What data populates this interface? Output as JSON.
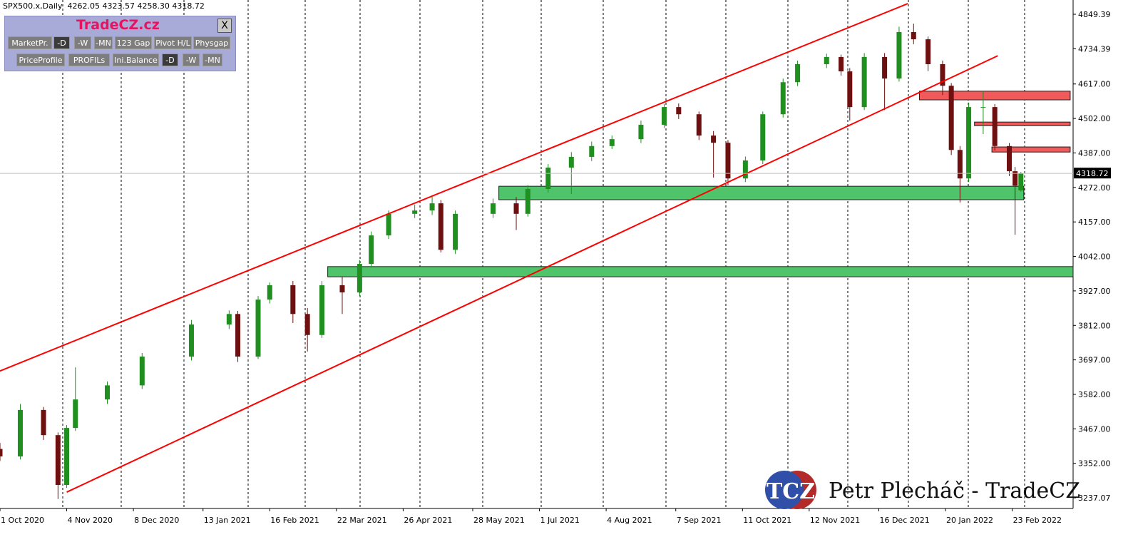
{
  "header": "SPX500.x,Daily  4262.05 4323.57 4258.30 4318.72",
  "toolbar": {
    "title": "TradeCZ.cz",
    "close": "X",
    "row1": [
      "MarketPr.",
      "-D",
      "-W",
      "-MN",
      "123 Gap",
      "Pivot H/L",
      "Physgap"
    ],
    "row2": [
      "PriceProfile",
      "PROFILs",
      "Ini.Balance",
      "-D",
      "-W",
      "-MN"
    ]
  },
  "watermark": {
    "logo": "TCZ",
    "text": "Petr Plecháč - TradeCZ"
  },
  "chart_data": {
    "type": "candlestick",
    "up_color": "#1f8f1f",
    "down_color": "#6e1010",
    "xlim": [
      0,
      370
    ],
    "ylim": [
      3201.5,
      4897
    ],
    "xticks": [
      {
        "value": 0,
        "label": "1 Oct 2020"
      },
      {
        "value": 23,
        "label": "4 Nov 2020"
      },
      {
        "value": 46,
        "label": "8 Dec 2020"
      },
      {
        "value": 70,
        "label": "13 Jan 2021"
      },
      {
        "value": 93,
        "label": "16 Feb 2021"
      },
      {
        "value": 116,
        "label": "22 Mar 2021"
      },
      {
        "value": 139,
        "label": "26 Apr 2021"
      },
      {
        "value": 163,
        "label": "28 May 2021"
      },
      {
        "value": 186,
        "label": "1 Jul 2021"
      },
      {
        "value": 209,
        "label": "4 Aug 2021"
      },
      {
        "value": 233,
        "label": "7 Sep 2021"
      },
      {
        "value": 256,
        "label": "11 Oct 2021"
      },
      {
        "value": 279,
        "label": "12 Nov 2021"
      },
      {
        "value": 303,
        "label": "16 Dec 2021"
      },
      {
        "value": 326,
        "label": "20 Jan 2022"
      },
      {
        "value": 349,
        "label": "23 Feb 2022"
      }
    ],
    "yticks": [
      4849.39,
      4734.39,
      {
        "value": 4617,
        "label": "4617.00"
      },
      {
        "value": 4502,
        "label": "4502.00"
      },
      {
        "value": 4387,
        "label": "4387.00"
      },
      {
        "value": 4272,
        "label": "4272.00"
      },
      {
        "value": 4157,
        "label": "4157.00"
      },
      {
        "value": 4042,
        "label": "4042.00"
      },
      {
        "value": 3927,
        "label": "3927.00"
      },
      {
        "value": 3812,
        "label": "3812.00"
      },
      {
        "value": 3697,
        "label": "3697.00"
      },
      {
        "value": 3582,
        "label": "3582.00"
      },
      {
        "value": 3467,
        "label": "3467.00"
      },
      {
        "value": 3352,
        "label": "3352.00"
      },
      3237.07
    ],
    "candles": {
      "x": [
        0,
        7,
        15,
        20,
        23,
        26,
        37,
        49,
        66,
        79,
        82,
        89,
        93,
        101,
        106,
        111,
        118,
        124,
        128,
        134,
        143,
        149,
        152,
        157,
        170,
        178,
        182,
        189,
        197,
        204,
        211,
        221,
        229,
        234,
        241,
        246,
        251,
        257,
        263,
        270,
        275,
        285,
        290,
        293,
        298,
        305,
        310,
        315,
        320,
        325,
        328,
        331,
        334,
        339,
        343,
        348,
        350,
        352
      ],
      "open": [
        3400,
        3375,
        3530,
        3446,
        3280,
        3470,
        3565,
        3612,
        3708,
        3815,
        3850,
        3708,
        3898,
        3946,
        3850,
        3780,
        3946,
        3922,
        4017,
        4112,
        4184,
        4195,
        4219,
        4064,
        4184,
        4219,
        4184,
        4267,
        4338,
        4374,
        4410,
        4433,
        4481,
        4540,
        4516,
        4445,
        4421,
        4302,
        4362,
        4516,
        4623,
        4683,
        4707,
        4659,
        4540,
        4707,
        4635,
        4790,
        4766,
        4683,
        4611,
        4397,
        4302,
        4540,
        4540,
        4410,
        4326,
        4262.05
      ],
      "high": [
        3420,
        3550,
        3540,
        3455,
        3480,
        3672,
        3625,
        3720,
        3830,
        3862,
        3860,
        3910,
        3955,
        3960,
        3870,
        3960,
        3975,
        4030,
        4125,
        4195,
        4215,
        4245,
        4230,
        4195,
        4235,
        4240,
        4280,
        4350,
        4390,
        4425,
        4445,
        4495,
        4550,
        4552,
        4525,
        4460,
        4430,
        4375,
        4525,
        4635,
        4695,
        4718,
        4715,
        4670,
        4720,
        4720,
        4808,
        4818,
        4775,
        4695,
        4620,
        4410,
        4555,
        4595,
        4550,
        4420,
        4340,
        4323.57
      ],
      "low": [
        3360,
        3365,
        3430,
        3233,
        3270,
        3460,
        3550,
        3600,
        3695,
        3800,
        3690,
        3700,
        3885,
        3820,
        3725,
        3770,
        3850,
        3910,
        4005,
        4100,
        4170,
        4180,
        4055,
        4050,
        4170,
        4130,
        4175,
        4255,
        4250,
        4360,
        4400,
        4420,
        4470,
        4500,
        4430,
        4305,
        4280,
        4290,
        4350,
        4505,
        4610,
        4670,
        4645,
        4495,
        4530,
        4530,
        4625,
        4750,
        4660,
        4580,
        4380,
        4222,
        4290,
        4450,
        4395,
        4310,
        4114,
        4258.3
      ],
      "close": [
        3375,
        3530,
        3446,
        3280,
        3470,
        3565,
        3612,
        3708,
        3815,
        3850,
        3708,
        3898,
        3946,
        3850,
        3780,
        3946,
        3922,
        4017,
        4112,
        4184,
        4195,
        4219,
        4064,
        4184,
        4219,
        4184,
        4267,
        4338,
        4374,
        4410,
        4433,
        4481,
        4540,
        4516,
        4445,
        4421,
        4302,
        4362,
        4516,
        4623,
        4683,
        4707,
        4659,
        4540,
        4707,
        4635,
        4790,
        4766,
        4683,
        4611,
        4397,
        4302,
        4540,
        4540,
        4410,
        4326,
        4278,
        4318.72
      ]
    },
    "trendlines": [
      {
        "color": "#ff0000",
        "x": [
          0,
          313
        ],
        "y": [
          3660,
          4885
        ]
      },
      {
        "color": "#ff0000",
        "x": [
          23,
          344
        ],
        "y": [
          3256,
          4711
        ]
      }
    ],
    "zones": [
      {
        "color": "#4fc46a",
        "x0": 172,
        "x1": 353,
        "y0": 4231,
        "y1": 4276
      },
      {
        "color": "#4fc46a",
        "x0": 113,
        "x1": 370,
        "y0": 3974,
        "y1": 4008
      },
      {
        "color": "#f05a5a",
        "x0": 317,
        "x1": 369,
        "y0": 4564,
        "y1": 4593
      },
      {
        "color": "#f05a5a",
        "x0": 336,
        "x1": 369,
        "y0": 4478,
        "y1": 4490
      },
      {
        "color": "#f05a5a",
        "x0": 342,
        "x1": 369,
        "y0": 4390,
        "y1": 4407
      }
    ]
  }
}
